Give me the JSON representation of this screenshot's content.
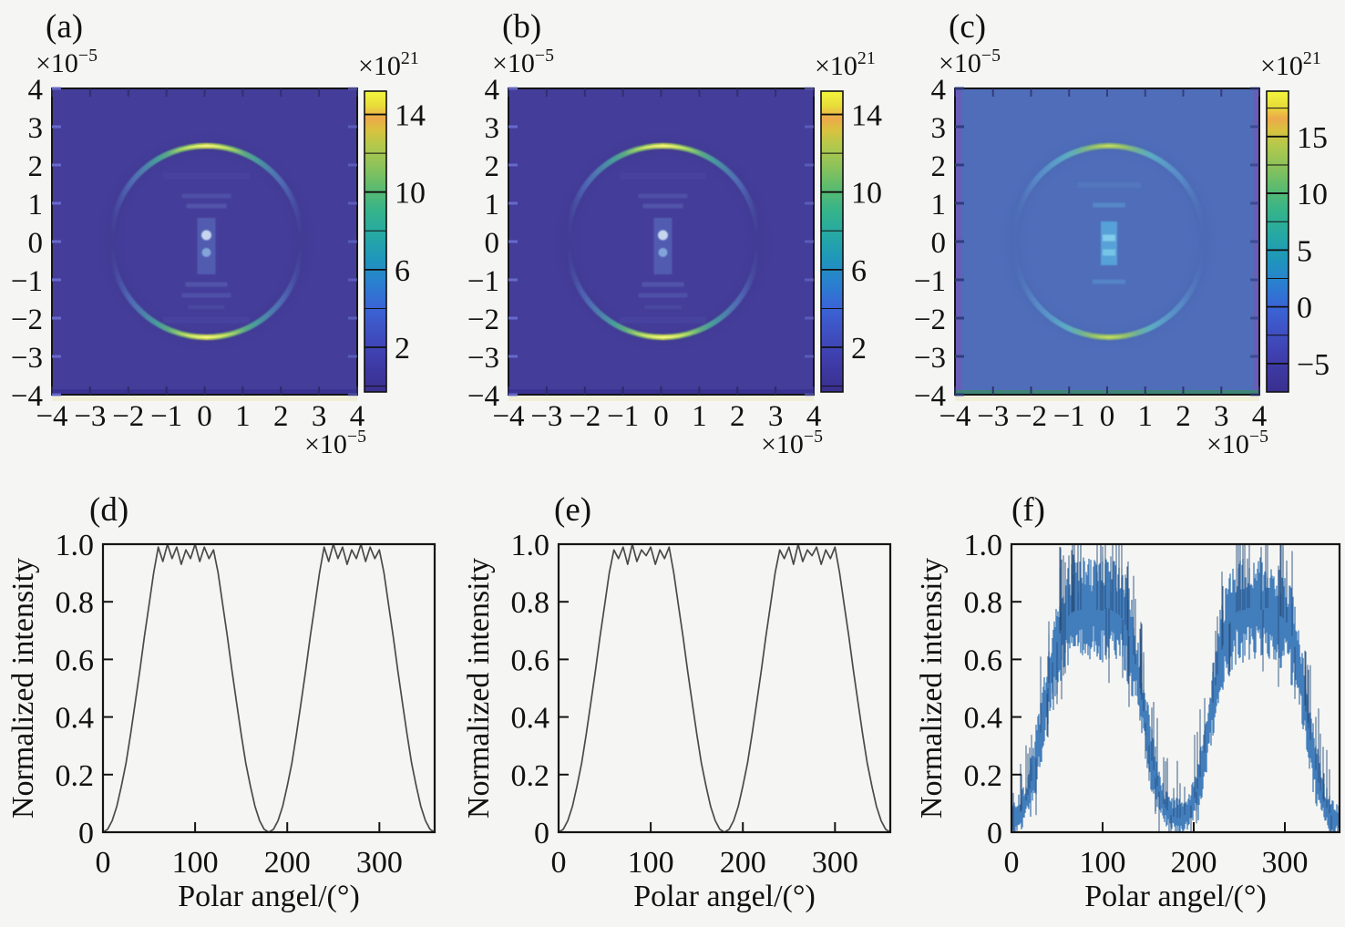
{
  "figure": {
    "type": "scientific-multipanel-figure",
    "background_color": "#f5f5f3",
    "text_color": "#111111",
    "axis_labels": {
      "x": "Polar angel/(°)",
      "y": "Normalized intensity"
    },
    "scales": {
      "axis_base": "×10",
      "axis_exp": "−5",
      "colorbar_base": "×10",
      "colorbar_exp": "21"
    },
    "panels": {
      "a": {
        "label": "(a)"
      },
      "b": {
        "label": "(b)"
      },
      "c": {
        "label": "(c)"
      },
      "d": {
        "label": "(d)"
      },
      "e": {
        "label": "(e)"
      },
      "f": {
        "label": "(f)"
      }
    },
    "colors": {
      "heatmap_bg_ab": "#443d99",
      "heatmap_bg_c": "#4f6db9",
      "ring_peak": "#cdda4e",
      "ring_mid": "#49ad9d",
      "ring_fade": "#5a8cce",
      "curve_gray": "#4a4a4a",
      "curve_blue": "#3c79ba",
      "spike_blue": "#27507e",
      "frame": "#141414",
      "colormap_stops": [
        [
          0,
          "#f4f63e"
        ],
        [
          0.05,
          "#e8dc3a"
        ],
        [
          0.09,
          "#eda94a"
        ],
        [
          0.13,
          "#d9c23e"
        ],
        [
          0.18,
          "#b4c94c"
        ],
        [
          0.25,
          "#8cc25a"
        ],
        [
          0.32,
          "#5cbb6e"
        ],
        [
          0.4,
          "#35b38b"
        ],
        [
          0.48,
          "#25a8a4"
        ],
        [
          0.56,
          "#1f96bb"
        ],
        [
          0.64,
          "#2a7fd0"
        ],
        [
          0.72,
          "#3a64d6"
        ],
        [
          0.8,
          "#3f51c2"
        ],
        [
          0.88,
          "#3f3fae"
        ],
        [
          1,
          "#3a2f8e"
        ]
      ]
    }
  },
  "chart_data": [
    {
      "type": "heatmap",
      "panel": "a",
      "x_axis": {
        "ticks": [
          -4,
          -3,
          -2,
          -1,
          0,
          1,
          2,
          3,
          4
        ],
        "scale": "×10⁻⁵"
      },
      "y_axis": {
        "ticks": [
          4,
          3,
          2,
          1,
          0,
          -1,
          -2,
          -3,
          -4
        ],
        "scale": "×10⁻⁵"
      },
      "colorbar": {
        "scale": "×10²¹",
        "major_ticks": [
          14,
          10,
          6,
          2
        ],
        "minor_tick_step": 2,
        "vmin": -0.3,
        "vmax": 15.2
      },
      "content": {
        "background_level_e21": 0.5,
        "ring": {
          "radius": 2.5e-05,
          "brightest_angles_deg": [
            90,
            270
          ],
          "faded_angles_deg": [
            0,
            180
          ],
          "peak_level_e21": 14.5
        },
        "center": "bright spot at origin with vertical stack of diffraction fringes"
      }
    },
    {
      "type": "heatmap",
      "panel": "b",
      "x_axis": {
        "ticks": [
          -4,
          -3,
          -2,
          -1,
          0,
          1,
          2,
          3,
          4
        ],
        "scale": "×10⁻⁵"
      },
      "y_axis": {
        "ticks": [
          4,
          3,
          2,
          1,
          0,
          -1,
          -2,
          -3,
          -4
        ],
        "scale": "×10⁻⁵"
      },
      "colorbar": {
        "scale": "×10²¹",
        "major_ticks": [
          14,
          10,
          6,
          2
        ],
        "minor_tick_step": 2,
        "vmin": -0.3,
        "vmax": 15.2
      },
      "content": {
        "background_level_e21": 0.5,
        "ring": {
          "radius": 2.5e-05,
          "brightest_angles_deg": [
            90,
            270
          ],
          "faded_angles_deg": [
            0,
            180
          ],
          "peak_level_e21": 14.5
        },
        "center": "bright spot at origin with vertical stack of diffraction fringes"
      }
    },
    {
      "type": "heatmap",
      "panel": "c",
      "x_axis": {
        "ticks": [
          -4,
          -3,
          -2,
          -1,
          0,
          1,
          2,
          3,
          4
        ],
        "scale": "×10⁻⁵"
      },
      "y_axis": {
        "ticks": [
          4,
          3,
          2,
          1,
          0,
          -1,
          -2,
          -3,
          -4
        ],
        "scale": "×10⁻⁵"
      },
      "colorbar": {
        "scale": "×10²¹",
        "major_ticks": [
          15,
          10,
          5,
          0,
          -5
        ],
        "minor_tick_step": 2.5,
        "vmin": -7.5,
        "vmax": 19
      },
      "content": {
        "background_level_e21": 0,
        "ring": {
          "radius": 2.5e-05,
          "brightest_angles_deg": [
            90,
            270
          ],
          "faded_angles_deg": [
            0,
            180
          ],
          "peak_level_e21": 12
        },
        "center": "cyan fringe stack at origin, fainter than panels a and b"
      }
    },
    {
      "type": "line",
      "panel": "d",
      "xlabel": "Polar angel/(°)",
      "ylabel": "Normalized intensity",
      "xlim": [
        0,
        360
      ],
      "ylim": [
        0,
        1
      ],
      "x_ticks": [
        0,
        100,
        200,
        300
      ],
      "y_ticks": [
        0,
        0.2,
        0.4,
        0.6,
        0.8,
        1.0
      ],
      "x_start": 0,
      "x_step": 5,
      "y": [
        0,
        0.01,
        0.04,
        0.09,
        0.16,
        0.24,
        0.34,
        0.45,
        0.56,
        0.68,
        0.79,
        0.9,
        0.99,
        0.94,
        1,
        0.95,
        0.99,
        0.93,
        0.98,
        0.95,
        1,
        0.94,
        0.99,
        0.95,
        0.98,
        0.9,
        0.79,
        0.68,
        0.56,
        0.45,
        0.34,
        0.24,
        0.16,
        0.09,
        0.04,
        0.01,
        0,
        0.01,
        0.04,
        0.09,
        0.16,
        0.24,
        0.34,
        0.45,
        0.56,
        0.68,
        0.79,
        0.9,
        0.99,
        0.94,
        1,
        0.95,
        0.99,
        0.93,
        0.98,
        0.95,
        1,
        0.94,
        0.99,
        0.95,
        0.98,
        0.9,
        0.79,
        0.68,
        0.56,
        0.45,
        0.34,
        0.24,
        0.16,
        0.09,
        0.04,
        0.01,
        0
      ]
    },
    {
      "type": "line",
      "panel": "e",
      "xlabel": "Polar angel/(°)",
      "ylabel": "Normalized intensity",
      "xlim": [
        0,
        360
      ],
      "ylim": [
        0,
        1
      ],
      "x_ticks": [
        0,
        100,
        200,
        300
      ],
      "y_ticks": [
        0,
        0.2,
        0.4,
        0.6,
        0.8,
        1.0
      ],
      "x_start": 0,
      "x_step": 5,
      "y": [
        0,
        0.01,
        0.04,
        0.09,
        0.16,
        0.24,
        0.34,
        0.45,
        0.56,
        0.68,
        0.79,
        0.9,
        0.98,
        0.95,
        0.99,
        0.93,
        1,
        0.94,
        0.98,
        0.96,
        0.99,
        0.93,
        0.98,
        0.95,
        0.99,
        0.9,
        0.79,
        0.68,
        0.56,
        0.45,
        0.34,
        0.24,
        0.16,
        0.09,
        0.04,
        0.01,
        0,
        0.01,
        0.04,
        0.09,
        0.16,
        0.24,
        0.34,
        0.45,
        0.56,
        0.68,
        0.79,
        0.9,
        0.98,
        0.95,
        0.99,
        0.93,
        1,
        0.94,
        0.98,
        0.96,
        0.99,
        0.93,
        0.98,
        0.95,
        0.99,
        0.9,
        0.79,
        0.68,
        0.56,
        0.45,
        0.34,
        0.24,
        0.16,
        0.09,
        0.04,
        0.01,
        0
      ]
    },
    {
      "type": "line",
      "panel": "f",
      "noisy": true,
      "xlabel": "Polar angel/(°)",
      "ylabel": "Normalized intensity",
      "xlim": [
        0,
        360
      ],
      "ylim": [
        0,
        1
      ],
      "x_ticks": [
        0,
        100,
        200,
        300
      ],
      "y_ticks": [
        0,
        0.2,
        0.4,
        0.6,
        0.8,
        1.0
      ],
      "x_start": 0,
      "x_step": 5,
      "y_center": [
        0.04,
        0.05,
        0.07,
        0.1,
        0.15,
        0.22,
        0.31,
        0.4,
        0.5,
        0.59,
        0.66,
        0.71,
        0.74,
        0.76,
        0.77,
        0.77,
        0.78,
        0.77,
        0.78,
        0.77,
        0.77,
        0.78,
        0.77,
        0.76,
        0.75,
        0.72,
        0.67,
        0.6,
        0.52,
        0.42,
        0.32,
        0.23,
        0.16,
        0.11,
        0.08,
        0.06,
        0.05,
        0.05,
        0.06,
        0.08,
        0.11,
        0.16,
        0.24,
        0.33,
        0.43,
        0.53,
        0.62,
        0.69,
        0.73,
        0.76,
        0.77,
        0.77,
        0.78,
        0.77,
        0.78,
        0.77,
        0.78,
        0.77,
        0.76,
        0.75,
        0.74,
        0.71,
        0.66,
        0.58,
        0.48,
        0.38,
        0.28,
        0.2,
        0.13,
        0.09,
        0.06,
        0.05,
        0.04
      ],
      "band": {
        "plateau_halfwidth": 0.13,
        "slope_halfwidth": 0.09,
        "floor_halfwidth": 0.05,
        "plateau_threshold": 0.6,
        "slope_threshold": 0.15
      },
      "noise_seed": 20
    }
  ]
}
